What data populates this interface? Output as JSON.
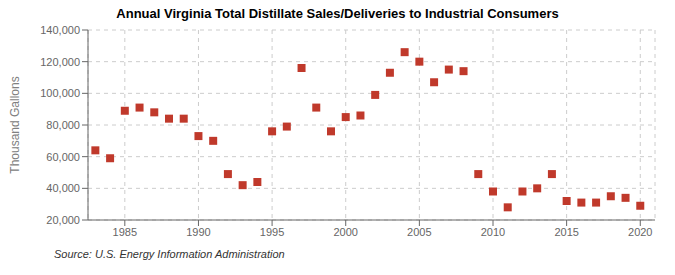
{
  "chart_data": {
    "type": "scatter",
    "title": "Annual Virginia Total Distillate Sales/Deliveries to Industrial Consumers",
    "ylabel": "Thousand Gallons",
    "annotation": "Source: U.S. Energy Information Administration",
    "x": [
      1983,
      1984,
      1985,
      1986,
      1987,
      1988,
      1989,
      1990,
      1991,
      1992,
      1993,
      1994,
      1995,
      1996,
      1997,
      1998,
      1999,
      2000,
      2001,
      2002,
      2003,
      2004,
      2005,
      2006,
      2007,
      2008,
      2009,
      2010,
      2011,
      2012,
      2013,
      2014,
      2015,
      2016,
      2017,
      2018,
      2019,
      2020
    ],
    "values": [
      64000,
      59000,
      89000,
      91000,
      88000,
      84000,
      84000,
      73000,
      70000,
      49000,
      42000,
      44000,
      76000,
      79000,
      116000,
      91000,
      76000,
      85000,
      86000,
      99000,
      113000,
      126000,
      120000,
      107000,
      115000,
      114000,
      49000,
      38000,
      28000,
      38000,
      40000,
      49000,
      32000,
      31000,
      31000,
      35000,
      34000,
      29000
    ],
    "color": "#c0392b",
    "marker": "square",
    "xlim": [
      1982.5,
      2021
    ],
    "ylim": [
      20000,
      140000
    ],
    "xticks": [
      1985,
      1990,
      1995,
      2000,
      2005,
      2010,
      2015,
      2020
    ],
    "yticks": [
      {
        "value": 20000,
        "label": "20,000"
      },
      {
        "value": 40000,
        "label": "40,000"
      },
      {
        "value": 60000,
        "label": "60,000"
      },
      {
        "value": 80000,
        "label": "80,000"
      },
      {
        "value": 100000,
        "label": "100,000"
      },
      {
        "value": 120000,
        "label": "120,000"
      },
      {
        "value": 140000,
        "label": "140,000"
      }
    ],
    "grid": true
  }
}
